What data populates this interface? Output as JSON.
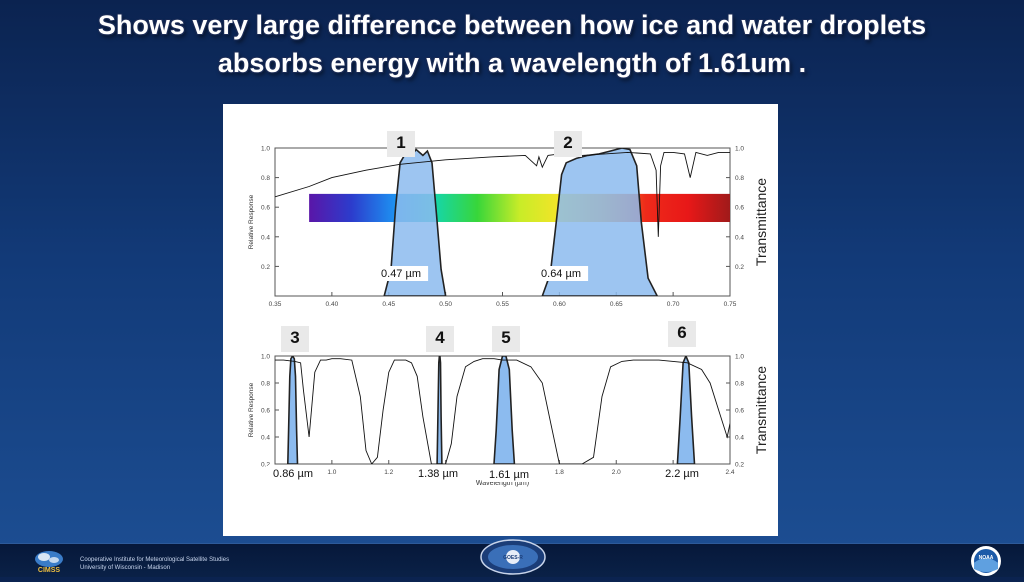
{
  "slide": {
    "title_line1": "Shows very large difference between how ice and water droplets",
    "title_line2": "absorbs energy with a wavelength of 1.61um ."
  },
  "footer": {
    "institute": "Cooperative Institute for Meteorological Satellite Studies",
    "university": "University of Wisconsin - Madison",
    "cimss_logo_text": "CIMSS",
    "goes_logo_text": "GOES-R",
    "noaa_logo_text": "NOAA"
  },
  "colors": {
    "band_fill": "#8cbbef",
    "band_stroke": "#222222",
    "transmittance_line": "#111111",
    "badge_bg": "#e9e9e9",
    "spectrum": [
      "#5a16a8",
      "#2c3ccc",
      "#1e8ef0",
      "#16d6a8",
      "#38d63a",
      "#c8ec28",
      "#f6e428",
      "#f89a1a",
      "#ee2a1a",
      "#e81818",
      "#a01a1a"
    ]
  },
  "chart_data": [
    {
      "type": "line",
      "panel": "visible",
      "ylabel": "Relative Response",
      "y2label": "Transmittance",
      "xlim": [
        0.35,
        0.75
      ],
      "ylim": [
        0.0,
        1.0
      ],
      "xticks": [
        "0.35",
        "0.40",
        "0.45",
        "0.50",
        "0.55",
        "0.60",
        "0.65",
        "0.70",
        "0.75"
      ],
      "yticks": [
        "0.2",
        "0.4",
        "0.6",
        "0.8",
        "1.0"
      ],
      "band_numbers": [
        "1",
        "2"
      ],
      "band_labels": [
        "0.47 µm",
        "0.64 µm"
      ],
      "series": [
        {
          "band": "1",
          "x": [
            0.446,
            0.452,
            0.456,
            0.46,
            0.466,
            0.47,
            0.474,
            0.48,
            0.484,
            0.488,
            0.492,
            0.496,
            0.5
          ],
          "values": [
            0.0,
            0.18,
            0.6,
            0.9,
            0.98,
            0.95,
            0.99,
            0.95,
            0.98,
            0.9,
            0.55,
            0.18,
            0.0
          ]
        },
        {
          "band": "2",
          "x": [
            0.585,
            0.592,
            0.598,
            0.602,
            0.606,
            0.615,
            0.625,
            0.635,
            0.645,
            0.655,
            0.662,
            0.668,
            0.672,
            0.678,
            0.686
          ],
          "values": [
            0.0,
            0.15,
            0.55,
            0.82,
            0.9,
            0.93,
            0.95,
            0.96,
            0.98,
            1.0,
            0.99,
            0.88,
            0.5,
            0.12,
            0.0
          ]
        },
        {
          "name": "transmittance",
          "x": [
            0.35,
            0.38,
            0.4,
            0.43,
            0.46,
            0.5,
            0.54,
            0.57,
            0.58,
            0.582,
            0.585,
            0.59,
            0.6,
            0.62,
            0.64,
            0.66,
            0.68,
            0.685,
            0.687,
            0.689,
            0.692,
            0.7,
            0.71,
            0.715,
            0.72,
            0.73,
            0.74,
            0.75
          ],
          "values": [
            0.67,
            0.74,
            0.8,
            0.85,
            0.89,
            0.92,
            0.94,
            0.95,
            0.88,
            0.94,
            0.87,
            0.95,
            0.96,
            0.95,
            0.96,
            0.97,
            0.96,
            0.85,
            0.4,
            0.88,
            0.97,
            0.97,
            0.96,
            0.8,
            0.97,
            0.95,
            0.97,
            0.97
          ]
        }
      ]
    },
    {
      "type": "line",
      "panel": "near-infrared",
      "xlabel": "Wavelength (µm)",
      "ylabel": "Relative Response",
      "y2label": "Transmittance",
      "xlim": [
        0.8,
        2.4
      ],
      "ylim": [
        0.2,
        1.0
      ],
      "xticks": [
        "0.8",
        "1.0",
        "1.2",
        "1.4",
        "1.6",
        "1.8",
        "2.0",
        "2.2",
        "2.4"
      ],
      "yticks": [
        "0.2",
        "0.4",
        "0.6",
        "0.8",
        "1.0"
      ],
      "band_numbers": [
        "3",
        "4",
        "5",
        "6"
      ],
      "band_labels": [
        "0.86 µm",
        "1.38 µm",
        "1.61 µm",
        "2.2 µm"
      ],
      "series": [
        {
          "band": "3",
          "x": [
            0.845,
            0.848,
            0.852,
            0.856,
            0.862,
            0.868,
            0.872,
            0.876,
            0.879
          ],
          "values": [
            0.2,
            0.45,
            0.85,
            0.98,
            1.0,
            0.98,
            0.85,
            0.45,
            0.2
          ]
        },
        {
          "band": "4",
          "x": [
            1.37,
            1.373,
            1.376,
            1.378,
            1.38,
            1.382,
            1.384,
            1.387
          ],
          "values": [
            0.2,
            0.55,
            0.95,
            1.0,
            1.0,
            0.95,
            0.55,
            0.2
          ]
        },
        {
          "band": "5",
          "x": [
            1.57,
            1.578,
            1.588,
            1.6,
            1.612,
            1.624,
            1.634,
            1.642
          ],
          "values": [
            0.2,
            0.45,
            0.9,
            1.0,
            1.0,
            0.9,
            0.45,
            0.2
          ]
        },
        {
          "band": "6",
          "x": [
            2.215,
            2.225,
            2.235,
            2.245,
            2.255,
            2.265,
            2.275
          ],
          "values": [
            0.2,
            0.55,
            0.95,
            1.0,
            0.95,
            0.55,
            0.2
          ]
        },
        {
          "name": "transmittance",
          "x": [
            0.8,
            0.83,
            0.87,
            0.89,
            0.9,
            0.92,
            0.94,
            0.96,
            0.98,
            1.0,
            1.03,
            1.07,
            1.1,
            1.12,
            1.14,
            1.16,
            1.18,
            1.2,
            1.22,
            1.24,
            1.26,
            1.28,
            1.3,
            1.32,
            1.35,
            1.38,
            1.4,
            1.42,
            1.44,
            1.47,
            1.5,
            1.53,
            1.57,
            1.6,
            1.65,
            1.7,
            1.74,
            1.77,
            1.8,
            1.84,
            1.88,
            1.92,
            1.95,
            1.98,
            2.02,
            2.06,
            2.1,
            2.15,
            2.2,
            2.25,
            2.3,
            2.33,
            2.36,
            2.39,
            2.4
          ],
          "values": [
            0.97,
            0.97,
            0.96,
            0.95,
            0.75,
            0.4,
            0.88,
            0.97,
            0.97,
            0.98,
            0.98,
            0.97,
            0.7,
            0.3,
            0.15,
            0.25,
            0.6,
            0.88,
            0.97,
            0.97,
            0.97,
            0.95,
            0.85,
            0.55,
            0.2,
            0.1,
            0.15,
            0.35,
            0.7,
            0.92,
            0.96,
            0.98,
            0.98,
            0.97,
            0.97,
            0.92,
            0.8,
            0.5,
            0.2,
            0.1,
            0.1,
            0.25,
            0.7,
            0.92,
            0.96,
            0.97,
            0.97,
            0.97,
            0.96,
            0.95,
            0.9,
            0.8,
            0.6,
            0.4,
            0.5
          ]
        }
      ]
    }
  ]
}
